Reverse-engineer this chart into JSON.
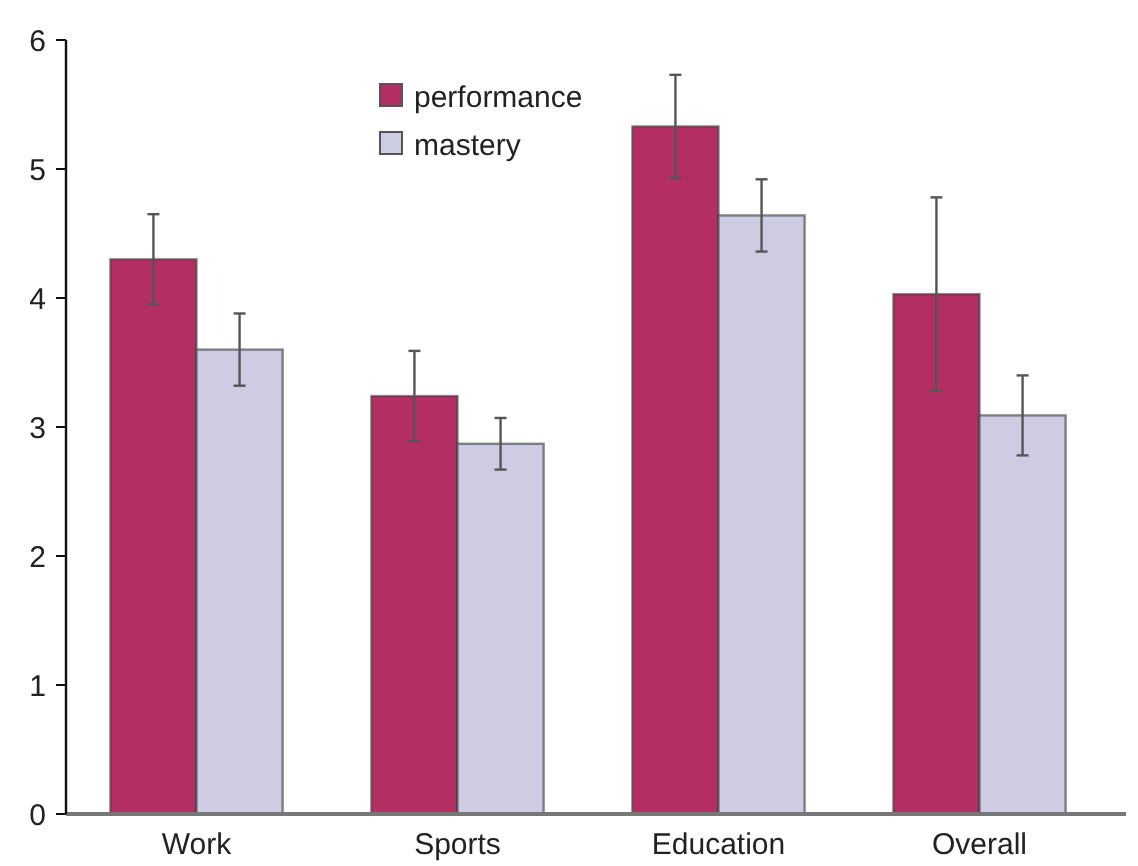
{
  "chart_data": {
    "type": "bar",
    "categories": [
      "Work",
      "Sports",
      "Education",
      "Overall"
    ],
    "series": [
      {
        "name": "performance",
        "color": "#b22e63",
        "values": [
          4.3,
          3.24,
          5.33,
          4.03
        ],
        "errors": [
          0.35,
          0.35,
          0.4,
          0.75
        ]
      },
      {
        "name": "mastery",
        "color": "#cdcce3",
        "values": [
          3.6,
          2.87,
          4.64,
          3.09
        ],
        "errors": [
          0.28,
          0.2,
          0.28,
          0.31
        ]
      }
    ],
    "ylim": [
      0,
      6
    ],
    "yticks": [
      0,
      1,
      2,
      3,
      4,
      5,
      6
    ],
    "grid": false,
    "legend": "top"
  }
}
